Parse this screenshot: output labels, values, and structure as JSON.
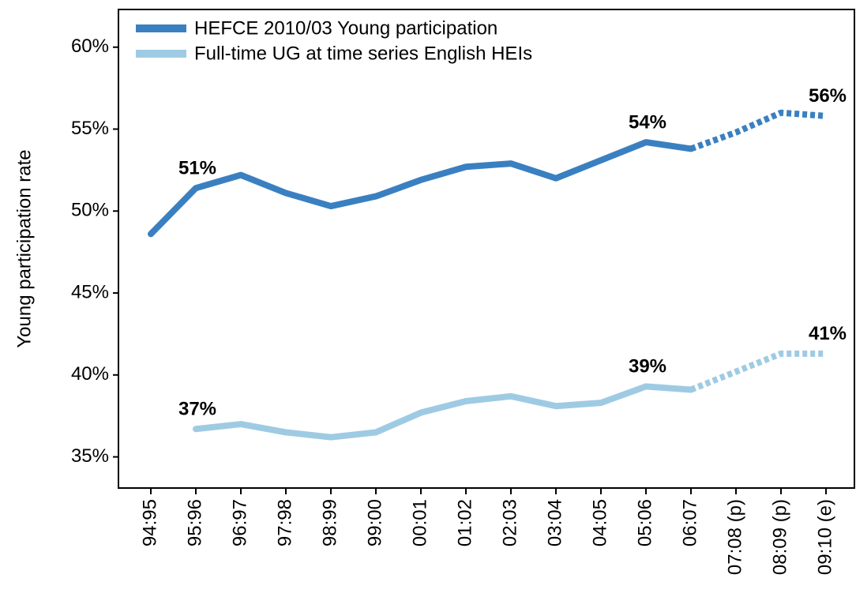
{
  "chart_data": {
    "type": "line",
    "ylabel": "Young participation rate",
    "categories": [
      "94:95",
      "95:96",
      "96:97",
      "97:98",
      "98:99",
      "99:00",
      "00:01",
      "01:02",
      "02:03",
      "03:04",
      "04:05",
      "05:06",
      "06:07",
      "07:08 (p)",
      "08:09 (p)",
      "09:10 (e)"
    ],
    "series": [
      {
        "name": "HEFCE 2010/03 Young participation",
        "color": "#3a80c1",
        "values": [
          48.6,
          51.4,
          52.2,
          51.1,
          50.3,
          50.9,
          51.9,
          52.7,
          52.9,
          52.0,
          53.1,
          54.2,
          53.8,
          54.8,
          56.0,
          55.8
        ],
        "value_labels": [
          null,
          "51%",
          null,
          null,
          null,
          null,
          null,
          null,
          null,
          null,
          null,
          "54%",
          null,
          null,
          null,
          "56%"
        ]
      },
      {
        "name": "Full-time UG at time series English HEIs",
        "color": "#9ecbe3",
        "values": [
          null,
          36.7,
          37.0,
          36.5,
          36.2,
          36.5,
          37.7,
          38.4,
          38.7,
          38.1,
          38.3,
          39.3,
          39.1,
          40.2,
          41.3,
          41.3
        ],
        "value_labels": [
          null,
          "37%",
          null,
          null,
          null,
          null,
          null,
          null,
          null,
          null,
          null,
          "39%",
          null,
          null,
          null,
          "41%"
        ]
      }
    ],
    "dashed_from_index": 12,
    "ylim": [
      33.1,
      62.3
    ],
    "yticks": [
      {
        "value": 35,
        "label": "35%"
      },
      {
        "value": 40,
        "label": "40%"
      },
      {
        "value": 45,
        "label": "45%"
      },
      {
        "value": 50,
        "label": "50%"
      },
      {
        "value": 55,
        "label": "55%"
      },
      {
        "value": 60,
        "label": "60%"
      }
    ],
    "legend": "upper left"
  }
}
